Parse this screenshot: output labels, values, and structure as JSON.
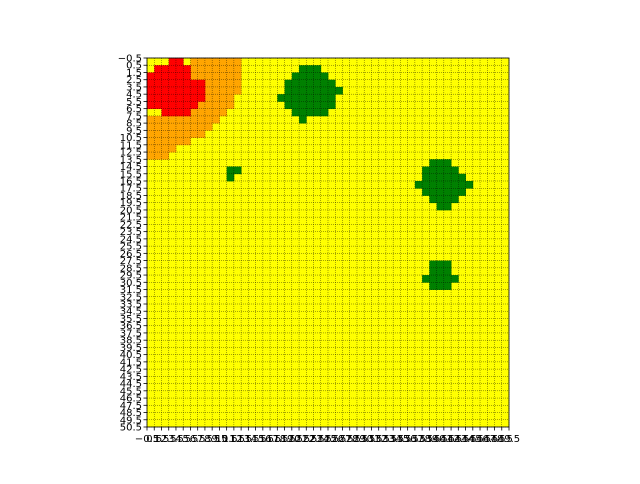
{
  "chart_data": {
    "type": "heatmap",
    "title": "",
    "xlabel": "",
    "ylabel": "",
    "grid": true,
    "grid_style": "dotted",
    "xlim": [
      -0.5,
      49.5
    ],
    "ylim": [
      50.5,
      -0.5
    ],
    "x_ticks": [
      -0.5,
      0.5,
      1.5,
      2.5,
      3.5,
      4.5,
      5.5,
      6.5,
      7.5,
      8.5,
      9.5,
      10.5,
      11.5,
      12.5,
      13.5,
      14.5,
      15.5,
      16.5,
      17.5,
      18.5,
      19.5,
      20.5,
      21.5,
      22.5,
      23.5,
      24.5,
      25.5,
      26.5,
      27.5,
      28.5,
      29.5,
      30.5,
      31.5,
      32.5,
      33.5,
      34.5,
      35.5,
      36.5,
      37.5,
      38.5,
      39.5,
      40.5,
      41.5,
      42.5,
      43.5,
      44.5,
      45.5,
      46.5,
      47.5,
      48.5,
      49.5
    ],
    "x_tick_labels": [
      "−0.5",
      "0.5",
      "1.5",
      "2.5",
      "3.5",
      "4.5",
      "5.5",
      "6.5",
      "7.5",
      "8.5",
      "9.5",
      "10.5",
      "11.5",
      "12.5",
      "13.5",
      "14.5",
      "15.5",
      "16.5",
      "17.5",
      "18.5",
      "19.5",
      "20.5",
      "21.5",
      "22.5",
      "23.5",
      "24.5",
      "25.5",
      "26.5",
      "27.5",
      "28.5",
      "29.5",
      "30.5",
      "31.5",
      "32.5",
      "33.5",
      "34.5",
      "35.5",
      "36.5",
      "37.5",
      "38.5",
      "39.5",
      "40.5",
      "41.5",
      "42.5",
      "43.5",
      "44.5",
      "45.5",
      "46.5",
      "47.5",
      "48.5",
      "49.5"
    ],
    "y_ticks": [
      -0.5,
      0.5,
      1.5,
      2.5,
      3.5,
      4.5,
      5.5,
      6.5,
      7.5,
      8.5,
      9.5,
      10.5,
      11.5,
      12.5,
      13.5,
      14.5,
      15.5,
      16.5,
      17.5,
      18.5,
      19.5,
      20.5,
      21.5,
      22.5,
      23.5,
      24.5,
      25.5,
      26.5,
      27.5,
      28.5,
      29.5,
      30.5,
      31.5,
      32.5,
      33.5,
      34.5,
      35.5,
      36.5,
      37.5,
      38.5,
      39.5,
      40.5,
      41.5,
      42.5,
      43.5,
      44.5,
      45.5,
      46.5,
      47.5,
      48.5,
      49.5,
      50.5
    ],
    "y_tick_labels": [
      "−0.5",
      "0.5",
      "1.5",
      "2.5",
      "3.5",
      "4.5",
      "5.5",
      "6.5",
      "7.5",
      "8.5",
      "9.5",
      "10.5",
      "11.5",
      "12.5",
      "13.5",
      "14.5",
      "15.5",
      "16.5",
      "17.5",
      "18.5",
      "19.5",
      "20.5",
      "21.5",
      "22.5",
      "23.5",
      "24.5",
      "25.5",
      "26.5",
      "27.5",
      "28.5",
      "29.5",
      "30.5",
      "31.5",
      "32.5",
      "33.5",
      "34.5",
      "35.5",
      "36.5",
      "37.5",
      "38.5",
      "39.5",
      "40.5",
      "41.5",
      "42.5",
      "43.5",
      "44.5",
      "45.5",
      "46.5",
      "47.5",
      "48.5",
      "49.5",
      "50.5"
    ],
    "colors": {
      "background": "#ffff00",
      "red": "#ff0000",
      "orange": "#ffa500",
      "green": "#008000",
      "grid": "#000000",
      "axes": "#000000"
    },
    "layers": [
      {
        "color": "orange",
        "cells": [
          [
            0,
            6
          ],
          [
            0,
            7
          ],
          [
            0,
            8
          ],
          [
            0,
            9
          ],
          [
            0,
            10
          ],
          [
            0,
            11
          ],
          [
            0,
            12
          ],
          [
            1,
            6
          ],
          [
            1,
            7
          ],
          [
            1,
            8
          ],
          [
            1,
            9
          ],
          [
            1,
            10
          ],
          [
            1,
            11
          ],
          [
            1,
            12
          ],
          [
            2,
            6
          ],
          [
            2,
            7
          ],
          [
            2,
            8
          ],
          [
            2,
            9
          ],
          [
            2,
            10
          ],
          [
            2,
            11
          ],
          [
            2,
            12
          ],
          [
            3,
            6
          ],
          [
            3,
            7
          ],
          [
            3,
            8
          ],
          [
            3,
            9
          ],
          [
            3,
            10
          ],
          [
            3,
            11
          ],
          [
            3,
            12
          ],
          [
            4,
            6
          ],
          [
            4,
            7
          ],
          [
            4,
            8
          ],
          [
            4,
            9
          ],
          [
            4,
            10
          ],
          [
            4,
            11
          ],
          [
            4,
            12
          ],
          [
            5,
            6
          ],
          [
            5,
            7
          ],
          [
            5,
            8
          ],
          [
            5,
            9
          ],
          [
            5,
            10
          ],
          [
            5,
            11
          ],
          [
            6,
            6
          ],
          [
            6,
            7
          ],
          [
            6,
            8
          ],
          [
            6,
            9
          ],
          [
            6,
            10
          ],
          [
            6,
            11
          ],
          [
            7,
            6
          ],
          [
            7,
            7
          ],
          [
            7,
            8
          ],
          [
            7,
            9
          ],
          [
            7,
            10
          ],
          [
            8,
            0
          ],
          [
            8,
            1
          ],
          [
            8,
            2
          ],
          [
            8,
            3
          ],
          [
            8,
            4
          ],
          [
            8,
            5
          ],
          [
            8,
            6
          ],
          [
            8,
            7
          ],
          [
            8,
            8
          ],
          [
            8,
            9
          ],
          [
            9,
            0
          ],
          [
            9,
            1
          ],
          [
            9,
            2
          ],
          [
            9,
            3
          ],
          [
            9,
            4
          ],
          [
            9,
            5
          ],
          [
            9,
            6
          ],
          [
            9,
            7
          ],
          [
            9,
            8
          ],
          [
            10,
            0
          ],
          [
            10,
            1
          ],
          [
            10,
            2
          ],
          [
            10,
            3
          ],
          [
            10,
            4
          ],
          [
            10,
            5
          ],
          [
            10,
            6
          ],
          [
            10,
            7
          ],
          [
            11,
            0
          ],
          [
            11,
            1
          ],
          [
            11,
            2
          ],
          [
            11,
            3
          ],
          [
            11,
            4
          ],
          [
            11,
            5
          ],
          [
            12,
            0
          ],
          [
            12,
            1
          ],
          [
            12,
            2
          ],
          [
            12,
            3
          ],
          [
            13,
            0
          ],
          [
            13,
            1
          ],
          [
            13,
            2
          ]
        ]
      },
      {
        "color": "red",
        "cells": [
          [
            0,
            3
          ],
          [
            0,
            4
          ],
          [
            1,
            1
          ],
          [
            1,
            2
          ],
          [
            1,
            3
          ],
          [
            1,
            4
          ],
          [
            1,
            5
          ],
          [
            2,
            0
          ],
          [
            2,
            1
          ],
          [
            2,
            2
          ],
          [
            2,
            3
          ],
          [
            2,
            4
          ],
          [
            2,
            5
          ],
          [
            3,
            0
          ],
          [
            3,
            1
          ],
          [
            3,
            2
          ],
          [
            3,
            3
          ],
          [
            3,
            4
          ],
          [
            3,
            5
          ],
          [
            3,
            6
          ],
          [
            3,
            7
          ],
          [
            4,
            0
          ],
          [
            4,
            1
          ],
          [
            4,
            2
          ],
          [
            4,
            3
          ],
          [
            4,
            4
          ],
          [
            4,
            5
          ],
          [
            4,
            6
          ],
          [
            4,
            7
          ],
          [
            5,
            0
          ],
          [
            5,
            1
          ],
          [
            5,
            2
          ],
          [
            5,
            3
          ],
          [
            5,
            4
          ],
          [
            5,
            5
          ],
          [
            5,
            6
          ],
          [
            5,
            7
          ],
          [
            6,
            0
          ],
          [
            6,
            1
          ],
          [
            6,
            2
          ],
          [
            6,
            3
          ],
          [
            6,
            4
          ],
          [
            6,
            5
          ],
          [
            6,
            6
          ],
          [
            7,
            2
          ],
          [
            7,
            3
          ],
          [
            7,
            4
          ],
          [
            7,
            5
          ]
        ]
      },
      {
        "color": "green",
        "cells": [
          [
            1,
            21
          ],
          [
            1,
            22
          ],
          [
            1,
            23
          ],
          [
            2,
            20
          ],
          [
            2,
            21
          ],
          [
            2,
            22
          ],
          [
            2,
            23
          ],
          [
            2,
            24
          ],
          [
            3,
            19
          ],
          [
            3,
            20
          ],
          [
            3,
            21
          ],
          [
            3,
            22
          ],
          [
            3,
            23
          ],
          [
            3,
            24
          ],
          [
            3,
            25
          ],
          [
            4,
            19
          ],
          [
            4,
            20
          ],
          [
            4,
            21
          ],
          [
            4,
            22
          ],
          [
            4,
            23
          ],
          [
            4,
            24
          ],
          [
            4,
            25
          ],
          [
            4,
            26
          ],
          [
            5,
            18
          ],
          [
            5,
            19
          ],
          [
            5,
            20
          ],
          [
            5,
            21
          ],
          [
            5,
            22
          ],
          [
            5,
            23
          ],
          [
            5,
            24
          ],
          [
            5,
            25
          ],
          [
            6,
            19
          ],
          [
            6,
            20
          ],
          [
            6,
            21
          ],
          [
            6,
            22
          ],
          [
            6,
            23
          ],
          [
            6,
            24
          ],
          [
            6,
            25
          ],
          [
            7,
            20
          ],
          [
            7,
            21
          ],
          [
            7,
            22
          ],
          [
            7,
            23
          ],
          [
            7,
            24
          ],
          [
            8,
            21
          ],
          [
            15,
            11
          ],
          [
            15,
            12
          ],
          [
            16,
            11
          ],
          [
            14,
            39
          ],
          [
            14,
            40
          ],
          [
            14,
            41
          ],
          [
            15,
            38
          ],
          [
            15,
            39
          ],
          [
            15,
            40
          ],
          [
            15,
            41
          ],
          [
            15,
            42
          ],
          [
            16,
            38
          ],
          [
            16,
            39
          ],
          [
            16,
            40
          ],
          [
            16,
            41
          ],
          [
            16,
            42
          ],
          [
            16,
            43
          ],
          [
            17,
            37
          ],
          [
            17,
            38
          ],
          [
            17,
            39
          ],
          [
            17,
            40
          ],
          [
            17,
            41
          ],
          [
            17,
            42
          ],
          [
            17,
            43
          ],
          [
            17,
            44
          ],
          [
            18,
            38
          ],
          [
            18,
            39
          ],
          [
            18,
            40
          ],
          [
            18,
            41
          ],
          [
            18,
            42
          ],
          [
            18,
            43
          ],
          [
            19,
            39
          ],
          [
            19,
            40
          ],
          [
            19,
            41
          ],
          [
            19,
            42
          ],
          [
            20,
            40
          ],
          [
            20,
            41
          ],
          [
            28,
            39
          ],
          [
            28,
            40
          ],
          [
            28,
            41
          ],
          [
            29,
            39
          ],
          [
            29,
            40
          ],
          [
            29,
            41
          ],
          [
            30,
            38
          ],
          [
            30,
            39
          ],
          [
            30,
            40
          ],
          [
            30,
            41
          ],
          [
            30,
            42
          ],
          [
            31,
            39
          ],
          [
            31,
            40
          ],
          [
            31,
            41
          ]
        ]
      }
    ]
  }
}
